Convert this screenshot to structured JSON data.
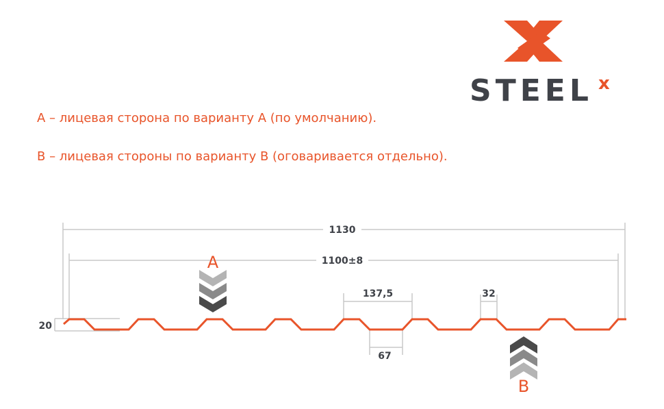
{
  "logo": {
    "text": "STEEL",
    "superscript": "x",
    "colors": {
      "orange": "#e8542a",
      "dark": "#3f4248"
    }
  },
  "notes": [
    "А – лицевая сторона по варианту А (по умолчанию).",
    "В – лицевая стороны по варианту В (оговаривается отдельно)."
  ],
  "dimensions": {
    "total_width": "1130",
    "working_width": "1100±8",
    "height": "20",
    "pitch": "137,5",
    "top_width": "32",
    "bottom_width": "67"
  },
  "side_labels": {
    "a": "A",
    "b": "B"
  },
  "colors": {
    "profile": "#e8542a",
    "dim_line": "#c8c8c8",
    "chevron_light": "#b4b4b4",
    "chevron_mid": "#8a8a8a",
    "chevron_dark": "#4a4a4a"
  }
}
